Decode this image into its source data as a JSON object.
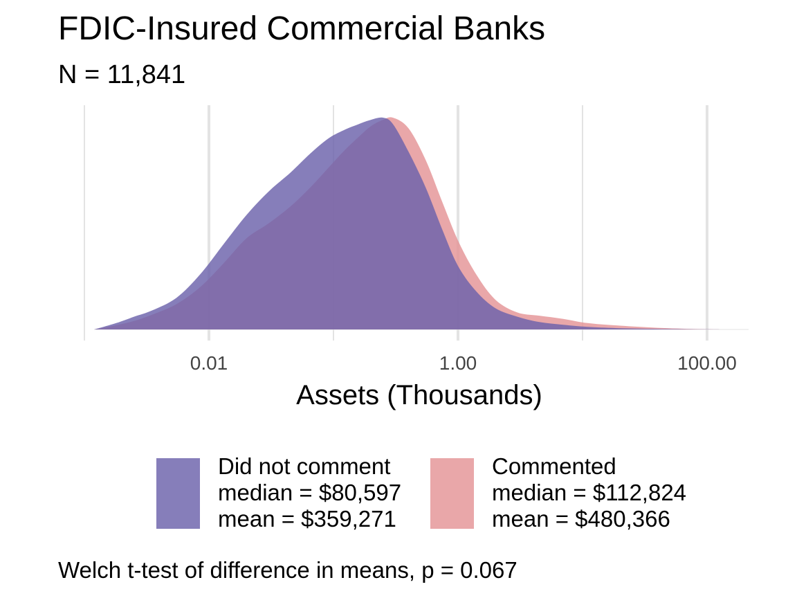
{
  "title": "FDIC-Insured Commercial Banks",
  "subtitle": "N = 11,841",
  "caption": "Welch t-test of difference in means, p = 0.067",
  "colors": {
    "did_not_comment": "#6b62ab",
    "commented": "#e49496",
    "overlap": "#7b508c",
    "grid": "#e3e3e3",
    "tick_text": "#444444"
  },
  "legend": [
    {
      "name": "Did not comment",
      "median": "median = $80,597",
      "mean": "mean = $359,271"
    },
    {
      "name": "Commented",
      "median": "median = $112,824",
      "mean": "mean = $480,366"
    }
  ],
  "chart_data": {
    "type": "area",
    "subtype": "density",
    "title": "FDIC-Insured Commercial Banks",
    "subtitle": "N = 11,841",
    "xlabel": "Assets (Thousands)",
    "ylabel": "",
    "x_scale": "log10",
    "xlim": [
      0.001,
      200
    ],
    "x_ticks": [
      0.01,
      1,
      100
    ],
    "x_tick_labels": [
      "0.01",
      "1.00",
      "100.00"
    ],
    "ylim": [
      0,
      1.0
    ],
    "grid": true,
    "legend_position": "bottom",
    "series": [
      {
        "name": "Did not comment",
        "x": [
          0.0012,
          0.0018,
          0.0025,
          0.0035,
          0.0055,
          0.0085,
          0.013,
          0.02,
          0.03,
          0.045,
          0.065,
          0.09,
          0.12,
          0.16,
          0.2,
          0.25,
          0.3,
          0.4,
          0.55,
          0.75,
          1.0,
          1.4,
          2.0,
          3.0,
          4.5,
          7.0,
          11,
          20,
          40,
          80,
          130
        ],
        "y": [
          0.0,
          0.03,
          0.06,
          0.09,
          0.15,
          0.26,
          0.4,
          0.54,
          0.65,
          0.74,
          0.83,
          0.9,
          0.94,
          0.97,
          0.99,
          1.0,
          0.97,
          0.84,
          0.67,
          0.47,
          0.3,
          0.18,
          0.1,
          0.06,
          0.035,
          0.022,
          0.012,
          0.006,
          0.003,
          0.001,
          0.0
        ]
      },
      {
        "name": "Commented",
        "x": [
          0.0012,
          0.0018,
          0.0025,
          0.0035,
          0.0055,
          0.0085,
          0.013,
          0.02,
          0.03,
          0.045,
          0.065,
          0.09,
          0.12,
          0.16,
          0.2,
          0.25,
          0.3,
          0.4,
          0.55,
          0.75,
          1.0,
          1.4,
          2.0,
          3.0,
          4.5,
          7.0,
          11,
          20,
          40,
          80,
          130
        ],
        "y": [
          0.0,
          0.02,
          0.04,
          0.07,
          0.12,
          0.2,
          0.31,
          0.43,
          0.5,
          0.58,
          0.67,
          0.76,
          0.84,
          0.91,
          0.96,
          0.99,
          1.0,
          0.95,
          0.8,
          0.6,
          0.42,
          0.26,
          0.14,
          0.08,
          0.065,
          0.05,
          0.03,
          0.018,
          0.008,
          0.002,
          0.0
        ]
      }
    ]
  }
}
